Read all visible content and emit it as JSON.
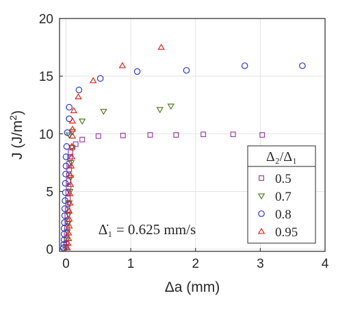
{
  "chart_data": {
    "type": "scatter",
    "title": "",
    "xlabel": "Δa (mm)",
    "ylabel_main": "J (J/m",
    "ylabel_sup": "2",
    "ylabel_end": ")",
    "xlim": [
      -0.1,
      4
    ],
    "ylim": [
      -0.2,
      20
    ],
    "xticks": [
      0,
      1,
      2,
      3,
      4
    ],
    "yticks": [
      0,
      5,
      10,
      15,
      20
    ],
    "grid": true,
    "legend_position": "right",
    "legend_title": "Δ₂/Δ₁",
    "annotation": "Δ̇₁ = 0.625 mm/s",
    "series": [
      {
        "name": "0.5",
        "marker": "square",
        "color": "#9a3fa0",
        "points": [
          [
            0.0,
            0.2
          ],
          [
            0.005,
            0.5
          ],
          [
            0.01,
            0.9
          ],
          [
            0.01,
            1.4
          ],
          [
            0.015,
            1.9
          ],
          [
            0.02,
            2.4
          ],
          [
            0.02,
            2.9
          ],
          [
            0.025,
            3.4
          ],
          [
            0.03,
            3.9
          ],
          [
            0.03,
            4.4
          ],
          [
            0.035,
            4.9
          ],
          [
            0.04,
            5.4
          ],
          [
            0.04,
            5.9
          ],
          [
            0.045,
            6.4
          ],
          [
            0.05,
            6.9
          ],
          [
            0.05,
            7.4
          ],
          [
            0.06,
            7.9
          ],
          [
            0.07,
            8.4
          ],
          [
            0.1,
            8.8
          ],
          [
            0.15,
            9.1
          ],
          [
            0.25,
            9.5
          ],
          [
            0.5,
            9.8
          ],
          [
            0.88,
            9.85
          ],
          [
            1.3,
            9.9
          ],
          [
            1.7,
            9.9
          ],
          [
            2.12,
            9.95
          ],
          [
            2.58,
            9.95
          ],
          [
            3.03,
            9.9
          ]
        ]
      },
      {
        "name": "0.7",
        "marker": "triangle-down",
        "color": "#4b7a1f",
        "points": [
          [
            0.0,
            0.2
          ],
          [
            0.01,
            0.8
          ],
          [
            0.02,
            1.5
          ],
          [
            0.03,
            2.2
          ],
          [
            0.04,
            3.0
          ],
          [
            0.05,
            4.0
          ],
          [
            0.06,
            5.0
          ],
          [
            0.07,
            6.2
          ],
          [
            0.08,
            7.5
          ],
          [
            0.09,
            8.8
          ],
          [
            0.05,
            9.9
          ],
          [
            0.1,
            10.2
          ],
          [
            0.25,
            11.1
          ],
          [
            0.58,
            11.95
          ],
          [
            1.45,
            12.1
          ],
          [
            1.62,
            12.4
          ]
        ]
      },
      {
        "name": "0.8",
        "marker": "circle",
        "color": "#2c35c9",
        "points": [
          [
            -0.04,
            0.1
          ],
          [
            -0.035,
            0.4
          ],
          [
            -0.03,
            0.8
          ],
          [
            -0.03,
            1.3
          ],
          [
            -0.03,
            1.8
          ],
          [
            -0.025,
            2.3
          ],
          [
            -0.02,
            2.9
          ],
          [
            -0.02,
            3.5
          ],
          [
            -0.015,
            4.2
          ],
          [
            -0.01,
            4.9
          ],
          [
            -0.01,
            5.7
          ],
          [
            -0.005,
            6.5
          ],
          [
            0.0,
            7.2
          ],
          [
            0.0,
            8.0
          ],
          [
            0.01,
            8.9
          ],
          [
            0.02,
            10.1
          ],
          [
            0.05,
            11.3
          ],
          [
            0.05,
            12.3
          ],
          [
            0.2,
            13.8
          ],
          [
            0.53,
            14.8
          ],
          [
            1.1,
            15.4
          ],
          [
            1.86,
            15.5
          ],
          [
            2.76,
            15.9
          ],
          [
            3.65,
            15.9
          ]
        ]
      },
      {
        "name": "0.95",
        "marker": "triangle-up",
        "color": "#e0231b",
        "points": [
          [
            0.02,
            0.1
          ],
          [
            0.03,
            0.5
          ],
          [
            0.04,
            0.9
          ],
          [
            0.04,
            1.4
          ],
          [
            0.05,
            2.0
          ],
          [
            0.05,
            2.6
          ],
          [
            0.05,
            3.3
          ],
          [
            0.06,
            4.0
          ],
          [
            0.06,
            4.8
          ],
          [
            0.07,
            5.6
          ],
          [
            0.07,
            6.4
          ],
          [
            0.08,
            7.2
          ],
          [
            0.09,
            8.0
          ],
          [
            0.09,
            8.9
          ],
          [
            0.1,
            9.8
          ],
          [
            0.1,
            10.4
          ],
          [
            0.1,
            11.1
          ],
          [
            0.12,
            12.0
          ],
          [
            0.19,
            13.2
          ],
          [
            0.42,
            14.6
          ],
          [
            0.87,
            15.9
          ],
          [
            1.47,
            17.5
          ]
        ]
      }
    ]
  }
}
